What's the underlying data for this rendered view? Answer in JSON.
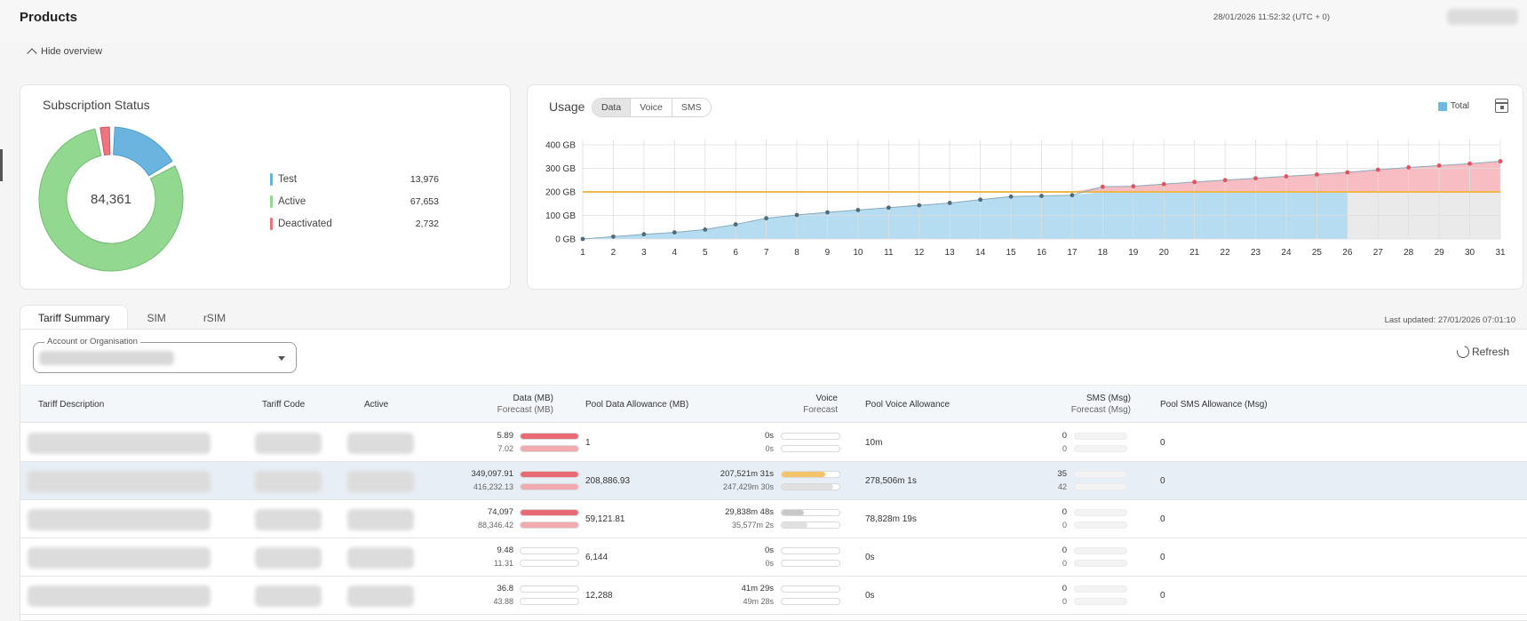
{
  "header": {
    "title": "Products",
    "timestamp": "28/01/2026 11:52:32 (UTC + 0)",
    "hide_overview": "Hide overview"
  },
  "subscription": {
    "title": "Subscription Status",
    "total": "84,361",
    "items": [
      {
        "label": "Test",
        "value": "13,976",
        "color": "#6bb4e0"
      },
      {
        "label": "Active",
        "value": "67,653",
        "color": "#92d891"
      },
      {
        "label": "Deactivated",
        "value": "2,732",
        "color": "#ee7480"
      }
    ]
  },
  "usage": {
    "title": "Usage",
    "tabs": [
      "Data",
      "Voice",
      "SMS"
    ],
    "active_tab": "Data",
    "legend": "Total",
    "colors": {
      "actual": "#a8d6ef",
      "over": "#f6b2b8",
      "allowance": "#f0b84a",
      "forecast_grey": "#e6e6e6"
    }
  },
  "chart_data": {
    "type": "area",
    "x": [
      1,
      2,
      3,
      4,
      5,
      6,
      7,
      8,
      9,
      10,
      11,
      12,
      13,
      14,
      15,
      16,
      17,
      18,
      19,
      20,
      21,
      22,
      23,
      24,
      25,
      26,
      27,
      28,
      29,
      30,
      31
    ],
    "xlabel": "",
    "ylabel": "",
    "ylim": [
      0,
      400
    ],
    "yticks": [
      "0 GB",
      "100 GB",
      "200 GB",
      "300 GB",
      "400 GB"
    ],
    "allowance": 200,
    "actual_through_day": 26,
    "series": [
      {
        "values": [
          0,
          10,
          20,
          28,
          40,
          62,
          88,
          102,
          113,
          123,
          133,
          143,
          153,
          167,
          180,
          183,
          186,
          222,
          224,
          233,
          242,
          250,
          258,
          266,
          274,
          283,
          294,
          304,
          312,
          320,
          330
        ]
      }
    ],
    "grid": true,
    "legend_position": "top-right"
  },
  "tabs": [
    {
      "label": "Tariff Summary",
      "active": true
    },
    {
      "label": "SIM",
      "active": false
    },
    {
      "label": "rSIM",
      "active": false
    }
  ],
  "last_updated": "Last updated: 27/01/2026 07:01:10",
  "filter": {
    "label": "Account or Organisation"
  },
  "refresh_label": "Refresh",
  "table": {
    "headers": {
      "tariff_description": "Tariff Description",
      "tariff_code": "Tariff Code",
      "active": "Active",
      "data": "Data (MB)",
      "data_forecast": "Forecast (MB)",
      "pool_data": "Pool Data Allowance (MB)",
      "voice": "Voice",
      "voice_forecast": "Forecast",
      "pool_voice": "Pool Voice Allowance",
      "sms": "SMS (Msg)",
      "sms_forecast": "Forecast (Msg)",
      "pool_sms": "Pool SMS Allowance (Msg)"
    },
    "rows": [
      {
        "data": "5.89",
        "data_forecast": "7.02",
        "data_pct": 1.0,
        "data_fc_pct": 1.0,
        "pool_data": "1",
        "voice": "0s",
        "voice_forecast": "0s",
        "voice_pct": 0,
        "voice_fc_pct": 0,
        "voice_color": "#f0b84a",
        "pool_voice": "10m",
        "sms": "0",
        "sms_forecast": "0",
        "pool_sms": "0",
        "highlight": false
      },
      {
        "data": "349,097.91",
        "data_forecast": "416,232.13",
        "data_pct": 1.0,
        "data_fc_pct": 1.0,
        "pool_data": "208,886.93",
        "voice": "207,521m 31s",
        "voice_forecast": "247,429m 30s",
        "voice_pct": 0.75,
        "voice_fc_pct": 0.89,
        "voice_color": "#f3c46a",
        "pool_voice": "278,506m 1s",
        "sms": "35",
        "sms_forecast": "42",
        "pool_sms": "0",
        "highlight": true
      },
      {
        "data": "74,097",
        "data_forecast": "88,346.42",
        "data_pct": 1.0,
        "data_fc_pct": 1.0,
        "pool_data": "59,121.81",
        "voice": "29,838m 48s",
        "voice_forecast": "35,577m 2s",
        "voice_pct": 0.38,
        "voice_fc_pct": 0.45,
        "voice_color": "#c8c8c8",
        "pool_voice": "78,828m 19s",
        "sms": "0",
        "sms_forecast": "0",
        "pool_sms": "0",
        "highlight": false
      },
      {
        "data": "9.48",
        "data_forecast": "11.31",
        "data_pct": 0.0,
        "data_fc_pct": 0.0,
        "pool_data": "6,144",
        "voice": "0s",
        "voice_forecast": "0s",
        "voice_pct": 0,
        "voice_fc_pct": 0,
        "voice_color": "#c8c8c8",
        "pool_voice": "0s",
        "sms": "0",
        "sms_forecast": "0",
        "pool_sms": "0",
        "highlight": false
      },
      {
        "data": "36.8",
        "data_forecast": "43.88",
        "data_pct": 0.0,
        "data_fc_pct": 0.0,
        "pool_data": "12,288",
        "voice": "41m 29s",
        "voice_forecast": "49m 28s",
        "voice_pct": 0,
        "voice_fc_pct": 0,
        "voice_color": "#c8c8c8",
        "pool_voice": "0s",
        "sms": "0",
        "sms_forecast": "0",
        "pool_sms": "0",
        "highlight": false
      }
    ]
  }
}
